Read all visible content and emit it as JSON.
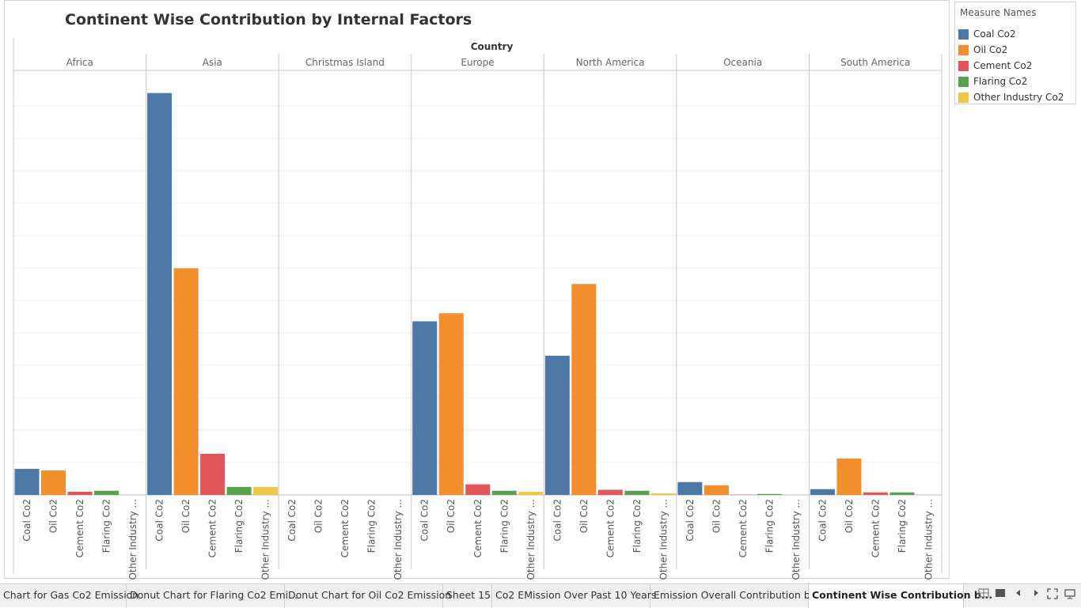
{
  "title": "Continent Wise Contribution by Internal Factors",
  "chart_data": {
    "type": "bar",
    "column_header": "Country",
    "panels": [
      "Africa",
      "Asia",
      "Christmas Island",
      "Europe",
      "North America",
      "Oceania",
      "South America"
    ],
    "categories": [
      "Coal Co2",
      "Oil Co2",
      "Cement Co2",
      "Flaring Co2",
      "Other Industry Co2"
    ],
    "category_labels": [
      "Coal Co2",
      "Oil Co2",
      "Cement Co2",
      "Flaring Co2",
      "Other Industry ..."
    ],
    "value_axis_shown": false,
    "grid": true,
    "legend_position": "right",
    "series": [
      {
        "panel": "Africa",
        "values": [
          8.1,
          7.6,
          1.0,
          1.3,
          0
        ]
      },
      {
        "panel": "Asia",
        "values": [
          125,
          70.5,
          12.8,
          2.5,
          2.5
        ]
      },
      {
        "panel": "Christmas Island",
        "values": [
          0,
          0,
          0,
          0,
          0
        ]
      },
      {
        "panel": "Europe",
        "values": [
          54,
          56.5,
          3.3,
          1.3,
          1.0
        ]
      },
      {
        "panel": "North America",
        "values": [
          43.3,
          65.6,
          1.6,
          1.3,
          0.5
        ]
      },
      {
        "panel": "Oceania",
        "values": [
          4.0,
          3.0,
          0.1,
          0.3,
          0
        ]
      },
      {
        "panel": "South America",
        "values": [
          1.8,
          11.3,
          0.8,
          0.8,
          0
        ]
      }
    ],
    "ylim": [
      0,
      131.8
    ]
  },
  "legend": {
    "title": "Measure Names",
    "items": [
      {
        "label": "Coal Co2",
        "color": "#4e79a7"
      },
      {
        "label": "Oil Co2",
        "color": "#f28e2b"
      },
      {
        "label": "Cement Co2",
        "color": "#e15759"
      },
      {
        "label": "Flaring Co2",
        "color": "#59a14f"
      },
      {
        "label": "Other Industry Co2",
        "color": "#edc948"
      }
    ]
  },
  "tabs": [
    {
      "label": "Chart for Gas Co2 Emission",
      "active": false
    },
    {
      "label": "Donut Chart for Flaring Co2 Emi...",
      "active": false
    },
    {
      "label": "Donut Chart for Oil Co2 Emission",
      "active": false
    },
    {
      "label": "Sheet 15",
      "active": false
    },
    {
      "label": "Co2 EMission Over Past 10 Years",
      "active": false
    },
    {
      "label": "Emission Overall Contribution b...",
      "active": false
    },
    {
      "label": "Continent Wise Contribution b...",
      "active": true
    }
  ],
  "nav_icons": [
    "grid-view-icon",
    "filmstrip-icon",
    "prev-sheet-icon",
    "next-sheet-icon",
    "fullscreen-icon",
    "present-icon"
  ]
}
